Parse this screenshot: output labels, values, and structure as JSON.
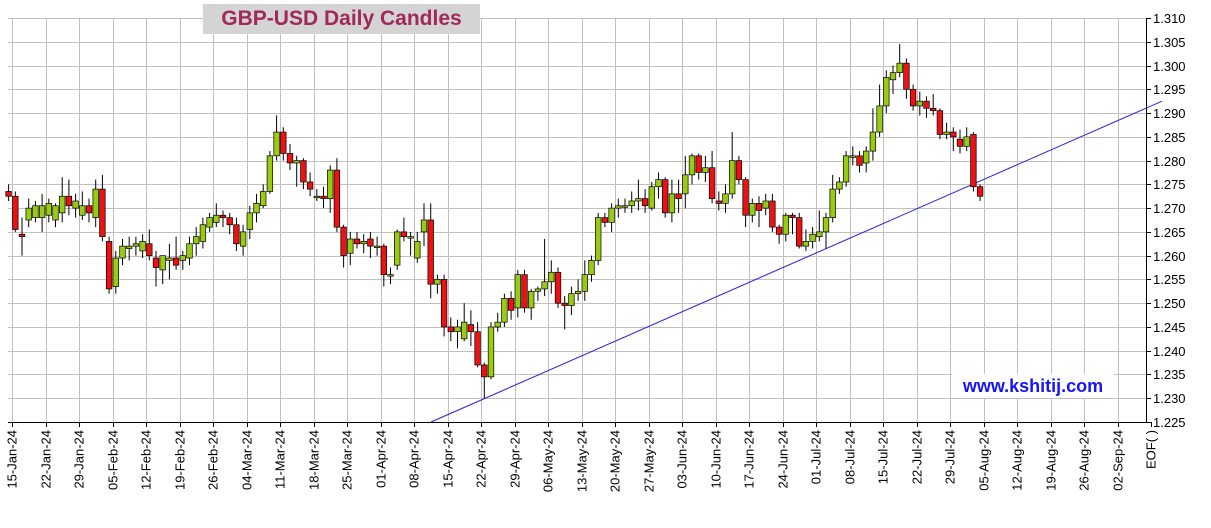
{
  "chart_data": {
    "type": "candlestick",
    "title": "GBP-USD Daily Candles",
    "watermark": "www.kshitij.com",
    "x_tick_labels": [
      "15-Jan-24",
      "22-Jan-24",
      "29-Jan-24",
      "05-Feb-24",
      "12-Feb-24",
      "19-Feb-24",
      "26-Feb-24",
      "04-Mar-24",
      "11-Mar-24",
      "18-Mar-24",
      "25-Mar-24",
      "01-Apr-24",
      "08-Apr-24",
      "15-Apr-24",
      "22-Apr-24",
      "29-Apr-24",
      "06-May-24",
      "13-May-24",
      "20-May-24",
      "27-May-24",
      "03-Jun-24",
      "10-Jun-24",
      "17-Jun-24",
      "24-Jun-24",
      "01-Jul-24",
      "08-Jul-24",
      "15-Jul-24",
      "22-Jul-24",
      "29-Jul-24",
      "05-Aug-24",
      "12-Aug-24",
      "19-Aug-24",
      "26-Aug-24",
      "02-Sep-24",
      "EOF( )"
    ],
    "y_axis": {
      "min": 1.225,
      "max": 1.31,
      "step": 0.005,
      "side": "right",
      "grid": true
    },
    "colors": {
      "up": "#99cc11",
      "down": "#ee1111",
      "trendline": "#2222dd",
      "grid": "#c0c0c0",
      "title_text": "#a0295a",
      "title_bg": "#d4d4d4",
      "watermark_text": "#1414ff"
    },
    "candles": [
      {
        "date": "2024-01-12",
        "o": 1.2735,
        "h": 1.275,
        "l": 1.2715,
        "c": 1.2725
      },
      {
        "date": "2024-01-15",
        "o": 1.2725,
        "h": 1.2735,
        "l": 1.265,
        "c": 1.2655
      },
      {
        "date": "2024-01-16",
        "o": 1.2645,
        "h": 1.268,
        "l": 1.26,
        "c": 1.264
      },
      {
        "date": "2024-01-17",
        "o": 1.2675,
        "h": 1.272,
        "l": 1.266,
        "c": 1.27
      },
      {
        "date": "2024-01-18",
        "o": 1.268,
        "h": 1.2715,
        "l": 1.267,
        "c": 1.2705
      },
      {
        "date": "2024-01-19",
        "o": 1.268,
        "h": 1.273,
        "l": 1.265,
        "c": 1.2705
      },
      {
        "date": "2024-01-22",
        "o": 1.2685,
        "h": 1.272,
        "l": 1.267,
        "c": 1.271
      },
      {
        "date": "2024-01-23",
        "o": 1.2675,
        "h": 1.271,
        "l": 1.266,
        "c": 1.2705
      },
      {
        "date": "2024-01-24",
        "o": 1.269,
        "h": 1.2765,
        "l": 1.267,
        "c": 1.2725
      },
      {
        "date": "2024-01-25",
        "o": 1.2725,
        "h": 1.276,
        "l": 1.2685,
        "c": 1.2705
      },
      {
        "date": "2024-01-26",
        "o": 1.27,
        "h": 1.273,
        "l": 1.268,
        "c": 1.2715
      },
      {
        "date": "2024-01-29",
        "o": 1.2685,
        "h": 1.2735,
        "l": 1.2675,
        "c": 1.2705
      },
      {
        "date": "2024-01-30",
        "o": 1.2705,
        "h": 1.272,
        "l": 1.267,
        "c": 1.269
      },
      {
        "date": "2024-01-31",
        "o": 1.268,
        "h": 1.276,
        "l": 1.266,
        "c": 1.274
      },
      {
        "date": "2024-02-01",
        "o": 1.274,
        "h": 1.277,
        "l": 1.263,
        "c": 1.264
      },
      {
        "date": "2024-02-02",
        "o": 1.263,
        "h": 1.264,
        "l": 1.252,
        "c": 1.253
      },
      {
        "date": "2024-02-05",
        "o": 1.2535,
        "h": 1.261,
        "l": 1.252,
        "c": 1.2595
      },
      {
        "date": "2024-02-06",
        "o": 1.2595,
        "h": 1.2635,
        "l": 1.258,
        "c": 1.262
      },
      {
        "date": "2024-02-07",
        "o": 1.2615,
        "h": 1.264,
        "l": 1.259,
        "c": 1.262
      },
      {
        "date": "2024-02-08",
        "o": 1.262,
        "h": 1.264,
        "l": 1.26,
        "c": 1.2625
      },
      {
        "date": "2024-02-09",
        "o": 1.261,
        "h": 1.2645,
        "l": 1.2595,
        "c": 1.263
      },
      {
        "date": "2024-02-12",
        "o": 1.2625,
        "h": 1.2655,
        "l": 1.259,
        "c": 1.26
      },
      {
        "date": "2024-02-13",
        "o": 1.2595,
        "h": 1.261,
        "l": 1.2535,
        "c": 1.2575
      },
      {
        "date": "2024-02-14",
        "o": 1.257,
        "h": 1.26,
        "l": 1.254,
        "c": 1.26
      },
      {
        "date": "2024-02-15",
        "o": 1.259,
        "h": 1.2625,
        "l": 1.255,
        "c": 1.2595
      },
      {
        "date": "2024-02-16",
        "o": 1.2595,
        "h": 1.264,
        "l": 1.257,
        "c": 1.258
      },
      {
        "date": "2024-02-19",
        "o": 1.259,
        "h": 1.261,
        "l": 1.257,
        "c": 1.26
      },
      {
        "date": "2024-02-20",
        "o": 1.2595,
        "h": 1.264,
        "l": 1.258,
        "c": 1.2625
      },
      {
        "date": "2024-02-21",
        "o": 1.2625,
        "h": 1.266,
        "l": 1.26,
        "c": 1.264
      },
      {
        "date": "2024-02-22",
        "o": 1.263,
        "h": 1.268,
        "l": 1.2615,
        "c": 1.2665
      },
      {
        "date": "2024-02-23",
        "o": 1.266,
        "h": 1.269,
        "l": 1.265,
        "c": 1.268
      },
      {
        "date": "2024-02-26",
        "o": 1.267,
        "h": 1.271,
        "l": 1.266,
        "c": 1.2685
      },
      {
        "date": "2024-02-27",
        "o": 1.2685,
        "h": 1.2695,
        "l": 1.266,
        "c": 1.268
      },
      {
        "date": "2024-02-28",
        "o": 1.268,
        "h": 1.269,
        "l": 1.2645,
        "c": 1.2665
      },
      {
        "date": "2024-02-29",
        "o": 1.2665,
        "h": 1.268,
        "l": 1.261,
        "c": 1.2625
      },
      {
        "date": "2024-03-01",
        "o": 1.262,
        "h": 1.2665,
        "l": 1.26,
        "c": 1.265
      },
      {
        "date": "2024-03-04",
        "o": 1.2655,
        "h": 1.2705,
        "l": 1.2635,
        "c": 1.269
      },
      {
        "date": "2024-03-05",
        "o": 1.269,
        "h": 1.273,
        "l": 1.267,
        "c": 1.271
      },
      {
        "date": "2024-03-06",
        "o": 1.2705,
        "h": 1.275,
        "l": 1.27,
        "c": 1.2735
      },
      {
        "date": "2024-03-07",
        "o": 1.2735,
        "h": 1.282,
        "l": 1.273,
        "c": 1.281
      },
      {
        "date": "2024-03-08",
        "o": 1.281,
        "h": 1.2895,
        "l": 1.28,
        "c": 1.286
      },
      {
        "date": "2024-03-11",
        "o": 1.286,
        "h": 1.287,
        "l": 1.28,
        "c": 1.2815
      },
      {
        "date": "2024-03-12",
        "o": 1.2815,
        "h": 1.2835,
        "l": 1.278,
        "c": 1.2795
      },
      {
        "date": "2024-03-13",
        "o": 1.2795,
        "h": 1.281,
        "l": 1.2745,
        "c": 1.28
      },
      {
        "date": "2024-03-14",
        "o": 1.28,
        "h": 1.2805,
        "l": 1.274,
        "c": 1.2755
      },
      {
        "date": "2024-03-15",
        "o": 1.2755,
        "h": 1.2775,
        "l": 1.2725,
        "c": 1.274
      },
      {
        "date": "2024-03-18",
        "o": 1.2725,
        "h": 1.274,
        "l": 1.2715,
        "c": 1.2725
      },
      {
        "date": "2024-03-19",
        "o": 1.2725,
        "h": 1.2745,
        "l": 1.27,
        "c": 1.272
      },
      {
        "date": "2024-03-20",
        "o": 1.272,
        "h": 1.279,
        "l": 1.269,
        "c": 1.278
      },
      {
        "date": "2024-03-21",
        "o": 1.278,
        "h": 1.2805,
        "l": 1.265,
        "c": 1.266
      },
      {
        "date": "2024-03-22",
        "o": 1.266,
        "h": 1.2665,
        "l": 1.2575,
        "c": 1.26
      },
      {
        "date": "2024-03-25",
        "o": 1.2605,
        "h": 1.265,
        "l": 1.258,
        "c": 1.2635
      },
      {
        "date": "2024-03-26",
        "o": 1.2635,
        "h": 1.265,
        "l": 1.2615,
        "c": 1.2625
      },
      {
        "date": "2024-03-27",
        "o": 1.2625,
        "h": 1.2645,
        "l": 1.2605,
        "c": 1.263
      },
      {
        "date": "2024-03-28",
        "o": 1.2635,
        "h": 1.265,
        "l": 1.2595,
        "c": 1.262
      },
      {
        "date": "2024-03-29",
        "o": 1.262,
        "h": 1.264,
        "l": 1.26,
        "c": 1.262
      },
      {
        "date": "2024-04-01",
        "o": 1.262,
        "h": 1.2625,
        "l": 1.2535,
        "c": 1.256
      },
      {
        "date": "2024-04-02",
        "o": 1.256,
        "h": 1.2575,
        "l": 1.254,
        "c": 1.256
      },
      {
        "date": "2024-04-03",
        "o": 1.258,
        "h": 1.2655,
        "l": 1.257,
        "c": 1.265
      },
      {
        "date": "2024-04-04",
        "o": 1.265,
        "h": 1.268,
        "l": 1.263,
        "c": 1.264
      },
      {
        "date": "2024-04-05",
        "o": 1.264,
        "h": 1.265,
        "l": 1.26,
        "c": 1.264
      },
      {
        "date": "2024-04-08",
        "o": 1.2595,
        "h": 1.265,
        "l": 1.2585,
        "c": 1.263
      },
      {
        "date": "2024-04-09",
        "o": 1.265,
        "h": 1.271,
        "l": 1.262,
        "c": 1.2675
      },
      {
        "date": "2024-04-10",
        "o": 1.2675,
        "h": 1.271,
        "l": 1.251,
        "c": 1.254
      },
      {
        "date": "2024-04-11",
        "o": 1.254,
        "h": 1.256,
        "l": 1.252,
        "c": 1.255
      },
      {
        "date": "2024-04-12",
        "o": 1.255,
        "h": 1.256,
        "l": 1.243,
        "c": 1.245
      },
      {
        "date": "2024-04-15",
        "o": 1.245,
        "h": 1.247,
        "l": 1.242,
        "c": 1.244
      },
      {
        "date": "2024-04-16",
        "o": 1.244,
        "h": 1.2465,
        "l": 1.2405,
        "c": 1.245
      },
      {
        "date": "2024-04-17",
        "o": 1.2425,
        "h": 1.25,
        "l": 1.242,
        "c": 1.246
      },
      {
        "date": "2024-04-18",
        "o": 1.2455,
        "h": 1.2485,
        "l": 1.241,
        "c": 1.244
      },
      {
        "date": "2024-04-19",
        "o": 1.244,
        "h": 1.246,
        "l": 1.2365,
        "c": 1.237
      },
      {
        "date": "2024-04-22",
        "o": 1.237,
        "h": 1.2375,
        "l": 1.23,
        "c": 1.2345
      },
      {
        "date": "2024-04-23",
        "o": 1.2345,
        "h": 1.246,
        "l": 1.234,
        "c": 1.245
      },
      {
        "date": "2024-04-24",
        "o": 1.245,
        "h": 1.248,
        "l": 1.244,
        "c": 1.246
      },
      {
        "date": "2024-04-25",
        "o": 1.246,
        "h": 1.252,
        "l": 1.245,
        "c": 1.251
      },
      {
        "date": "2024-04-26",
        "o": 1.251,
        "h": 1.2525,
        "l": 1.2465,
        "c": 1.2485
      },
      {
        "date": "2024-04-29",
        "o": 1.249,
        "h": 1.257,
        "l": 1.247,
        "c": 1.256
      },
      {
        "date": "2024-04-30",
        "o": 1.256,
        "h": 1.257,
        "l": 1.248,
        "c": 1.249
      },
      {
        "date": "2024-05-01",
        "o": 1.249,
        "h": 1.253,
        "l": 1.2465,
        "c": 1.2525
      },
      {
        "date": "2024-05-02",
        "o": 1.2525,
        "h": 1.2535,
        "l": 1.2505,
        "c": 1.253
      },
      {
        "date": "2024-05-03",
        "o": 1.253,
        "h": 1.2635,
        "l": 1.2515,
        "c": 1.2545
      },
      {
        "date": "2024-05-06",
        "o": 1.2545,
        "h": 1.259,
        "l": 1.252,
        "c": 1.2565
      },
      {
        "date": "2024-05-07",
        "o": 1.2565,
        "h": 1.2575,
        "l": 1.249,
        "c": 1.25
      },
      {
        "date": "2024-05-08",
        "o": 1.25,
        "h": 1.2515,
        "l": 1.2445,
        "c": 1.2495
      },
      {
        "date": "2024-05-09",
        "o": 1.2495,
        "h": 1.2535,
        "l": 1.2475,
        "c": 1.252
      },
      {
        "date": "2024-05-10",
        "o": 1.252,
        "h": 1.255,
        "l": 1.2505,
        "c": 1.2525
      },
      {
        "date": "2024-05-13",
        "o": 1.2525,
        "h": 1.259,
        "l": 1.2505,
        "c": 1.256
      },
      {
        "date": "2024-05-14",
        "o": 1.256,
        "h": 1.26,
        "l": 1.2545,
        "c": 1.259
      },
      {
        "date": "2024-05-15",
        "o": 1.259,
        "h": 1.269,
        "l": 1.258,
        "c": 1.268
      },
      {
        "date": "2024-05-16",
        "o": 1.268,
        "h": 1.269,
        "l": 1.266,
        "c": 1.267
      },
      {
        "date": "2024-05-17",
        "o": 1.267,
        "h": 1.271,
        "l": 1.265,
        "c": 1.27
      },
      {
        "date": "2024-05-20",
        "o": 1.27,
        "h": 1.272,
        "l": 1.268,
        "c": 1.2705
      },
      {
        "date": "2024-05-21",
        "o": 1.2705,
        "h": 1.272,
        "l": 1.269,
        "c": 1.2705
      },
      {
        "date": "2024-05-22",
        "o": 1.2705,
        "h": 1.2735,
        "l": 1.269,
        "c": 1.2715
      },
      {
        "date": "2024-05-23",
        "o": 1.2715,
        "h": 1.276,
        "l": 1.2695,
        "c": 1.272
      },
      {
        "date": "2024-05-24",
        "o": 1.272,
        "h": 1.274,
        "l": 1.269,
        "c": 1.2705
      },
      {
        "date": "2024-05-27",
        "o": 1.27,
        "h": 1.2755,
        "l": 1.2695,
        "c": 1.2745
      },
      {
        "date": "2024-05-28",
        "o": 1.2745,
        "h": 1.2775,
        "l": 1.272,
        "c": 1.276
      },
      {
        "date": "2024-05-29",
        "o": 1.276,
        "h": 1.2765,
        "l": 1.268,
        "c": 1.269
      },
      {
        "date": "2024-05-30",
        "o": 1.269,
        "h": 1.276,
        "l": 1.267,
        "c": 1.273
      },
      {
        "date": "2024-05-31",
        "o": 1.273,
        "h": 1.276,
        "l": 1.269,
        "c": 1.272
      },
      {
        "date": "2024-06-03",
        "o": 1.273,
        "h": 1.281,
        "l": 1.27,
        "c": 1.277
      },
      {
        "date": "2024-06-04",
        "o": 1.277,
        "h": 1.2815,
        "l": 1.275,
        "c": 1.281
      },
      {
        "date": "2024-06-05",
        "o": 1.281,
        "h": 1.2815,
        "l": 1.276,
        "c": 1.2775
      },
      {
        "date": "2024-06-06",
        "o": 1.2775,
        "h": 1.281,
        "l": 1.2755,
        "c": 1.2785
      },
      {
        "date": "2024-06-07",
        "o": 1.2785,
        "h": 1.282,
        "l": 1.271,
        "c": 1.272
      },
      {
        "date": "2024-06-10",
        "o": 1.2715,
        "h": 1.2735,
        "l": 1.2695,
        "c": 1.271
      },
      {
        "date": "2024-06-11",
        "o": 1.271,
        "h": 1.275,
        "l": 1.269,
        "c": 1.273
      },
      {
        "date": "2024-06-12",
        "o": 1.273,
        "h": 1.286,
        "l": 1.272,
        "c": 1.28
      },
      {
        "date": "2024-06-13",
        "o": 1.28,
        "h": 1.281,
        "l": 1.275,
        "c": 1.276
      },
      {
        "date": "2024-06-14",
        "o": 1.276,
        "h": 1.2765,
        "l": 1.266,
        "c": 1.2685
      },
      {
        "date": "2024-06-17",
        "o": 1.2685,
        "h": 1.272,
        "l": 1.267,
        "c": 1.271
      },
      {
        "date": "2024-06-18",
        "o": 1.271,
        "h": 1.2725,
        "l": 1.266,
        "c": 1.2695
      },
      {
        "date": "2024-06-19",
        "o": 1.27,
        "h": 1.273,
        "l": 1.2685,
        "c": 1.2715
      },
      {
        "date": "2024-06-20",
        "o": 1.2715,
        "h": 1.273,
        "l": 1.265,
        "c": 1.266
      },
      {
        "date": "2024-06-21",
        "o": 1.266,
        "h": 1.2665,
        "l": 1.2625,
        "c": 1.2645
      },
      {
        "date": "2024-06-24",
        "o": 1.2645,
        "h": 1.269,
        "l": 1.263,
        "c": 1.2685
      },
      {
        "date": "2024-06-25",
        "o": 1.2685,
        "h": 1.269,
        "l": 1.2645,
        "c": 1.268
      },
      {
        "date": "2024-06-26",
        "o": 1.268,
        "h": 1.269,
        "l": 1.2615,
        "c": 1.262
      },
      {
        "date": "2024-06-27",
        "o": 1.262,
        "h": 1.2655,
        "l": 1.261,
        "c": 1.263
      },
      {
        "date": "2024-06-28",
        "o": 1.263,
        "h": 1.266,
        "l": 1.2615,
        "c": 1.2645
      },
      {
        "date": "2024-07-01",
        "o": 1.264,
        "h": 1.2695,
        "l": 1.263,
        "c": 1.265
      },
      {
        "date": "2024-07-02",
        "o": 1.265,
        "h": 1.269,
        "l": 1.2615,
        "c": 1.268
      },
      {
        "date": "2024-07-03",
        "o": 1.268,
        "h": 1.277,
        "l": 1.267,
        "c": 1.274
      },
      {
        "date": "2024-07-04",
        "o": 1.274,
        "h": 1.2765,
        "l": 1.273,
        "c": 1.2755
      },
      {
        "date": "2024-07-05",
        "o": 1.2755,
        "h": 1.282,
        "l": 1.2745,
        "c": 1.281
      },
      {
        "date": "2024-07-08",
        "o": 1.281,
        "h": 1.283,
        "l": 1.279,
        "c": 1.281
      },
      {
        "date": "2024-07-09",
        "o": 1.281,
        "h": 1.282,
        "l": 1.2775,
        "c": 1.279
      },
      {
        "date": "2024-07-10",
        "o": 1.2795,
        "h": 1.283,
        "l": 1.2775,
        "c": 1.282
      },
      {
        "date": "2024-07-11",
        "o": 1.282,
        "h": 1.291,
        "l": 1.28,
        "c": 1.286
      },
      {
        "date": "2024-07-12",
        "o": 1.286,
        "h": 1.296,
        "l": 1.285,
        "c": 1.2915
      },
      {
        "date": "2024-07-15",
        "o": 1.2915,
        "h": 1.299,
        "l": 1.29,
        "c": 1.2975
      },
      {
        "date": "2024-07-16",
        "o": 1.297,
        "h": 1.3,
        "l": 1.294,
        "c": 1.2985
      },
      {
        "date": "2024-07-17",
        "o": 1.2985,
        "h": 1.3045,
        "l": 1.2975,
        "c": 1.3005
      },
      {
        "date": "2024-07-18",
        "o": 1.3005,
        "h": 1.3015,
        "l": 1.293,
        "c": 1.295
      },
      {
        "date": "2024-07-19",
        "o": 1.295,
        "h": 1.296,
        "l": 1.2905,
        "c": 1.2915
      },
      {
        "date": "2024-07-22",
        "o": 1.2915,
        "h": 1.2945,
        "l": 1.2895,
        "c": 1.2925
      },
      {
        "date": "2024-07-23",
        "o": 1.2925,
        "h": 1.2935,
        "l": 1.289,
        "c": 1.291
      },
      {
        "date": "2024-07-24",
        "o": 1.291,
        "h": 1.294,
        "l": 1.2895,
        "c": 1.2905
      },
      {
        "date": "2024-07-25",
        "o": 1.2905,
        "h": 1.291,
        "l": 1.2845,
        "c": 1.2855
      },
      {
        "date": "2024-07-26",
        "o": 1.2855,
        "h": 1.288,
        "l": 1.2845,
        "c": 1.286
      },
      {
        "date": "2024-07-29",
        "o": 1.286,
        "h": 1.287,
        "l": 1.282,
        "c": 1.285
      },
      {
        "date": "2024-07-30",
        "o": 1.2845,
        "h": 1.2865,
        "l": 1.2815,
        "c": 1.283
      },
      {
        "date": "2024-07-31",
        "o": 1.283,
        "h": 1.287,
        "l": 1.282,
        "c": 1.285
      },
      {
        "date": "2024-08-01",
        "o": 1.2855,
        "h": 1.286,
        "l": 1.2735,
        "c": 1.2745
      },
      {
        "date": "2024-08-02",
        "o": 1.2745,
        "h": 1.275,
        "l": 1.2715,
        "c": 1.2725
      }
    ]
  }
}
